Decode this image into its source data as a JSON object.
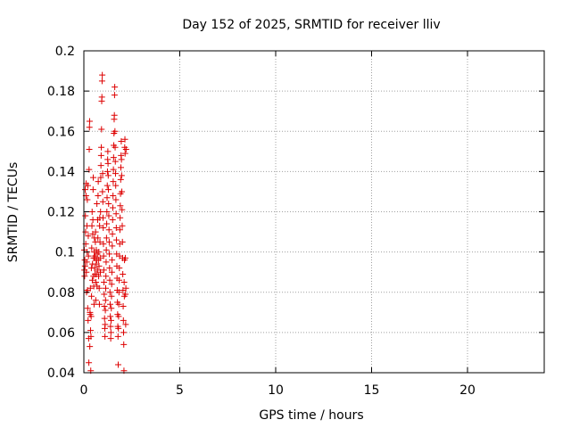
{
  "chart_data": {
    "type": "scatter",
    "title": "Day 152 of 2025, SRMTID for receiver lliv",
    "xlabel": "GPS time / hours",
    "ylabel": "SRMTID / TECUs",
    "xlim": [
      0,
      24
    ],
    "ylim": [
      0.04,
      0.2
    ],
    "x_ticks": [
      0,
      5,
      10,
      15,
      20
    ],
    "x_tick_labels": [
      "0",
      "5",
      "10",
      "15",
      "20"
    ],
    "y_ticks": [
      0.04,
      0.06,
      0.08,
      0.1,
      0.12,
      0.14,
      0.16,
      0.18,
      0.2
    ],
    "y_tick_labels": [
      "0.04",
      "0.06",
      "0.08",
      "0.1",
      "0.12",
      "0.14",
      "0.16",
      "0.18",
      "0.2"
    ],
    "grid": true,
    "marker": "plus",
    "color": "#dd0000",
    "series": [
      {
        "points": [
          [
            0.02,
            0.101
          ],
          [
            0.03,
            0.091
          ],
          [
            0.04,
            0.088
          ],
          [
            0.05,
            0.096
          ],
          [
            0.06,
            0.093
          ],
          [
            0.07,
            0.131
          ],
          [
            0.08,
            0.118
          ],
          [
            0.09,
            0.11
          ],
          [
            0.1,
            0.104
          ],
          [
            0.11,
            0.128
          ],
          [
            0.12,
            0.134
          ],
          [
            0.13,
            0.09
          ],
          [
            0.14,
            0.08
          ],
          [
            0.15,
            0.095
          ],
          [
            0.16,
            0.113
          ],
          [
            0.17,
            0.1
          ],
          [
            0.18,
            0.126
          ],
          [
            0.19,
            0.081
          ],
          [
            0.2,
            0.072
          ],
          [
            0.21,
            0.133
          ],
          [
            0.22,
            0.066
          ],
          [
            0.23,
            0.108
          ],
          [
            0.24,
            0.098
          ],
          [
            0.25,
            0.057
          ],
          [
            0.26,
            0.045
          ],
          [
            0.27,
            0.141
          ],
          [
            0.28,
            0.151
          ],
          [
            0.29,
            0.162
          ],
          [
            0.3,
            0.165
          ],
          [
            0.31,
            0.053
          ],
          [
            0.32,
            0.07
          ],
          [
            0.33,
            0.069
          ],
          [
            0.34,
            0.082
          ],
          [
            0.35,
            0.061
          ],
          [
            0.36,
            0.041
          ],
          [
            0.37,
            0.058
          ],
          [
            0.38,
            0.068
          ],
          [
            0.39,
            0.092
          ],
          [
            0.4,
            0.078
          ],
          [
            0.41,
            0.102
          ],
          [
            0.42,
            0.113
          ],
          [
            0.43,
            0.12
          ],
          [
            0.44,
            0.086
          ],
          [
            0.45,
            0.094
          ],
          [
            0.46,
            0.109
          ],
          [
            0.47,
            0.116
          ],
          [
            0.48,
            0.131
          ],
          [
            0.49,
            0.137
          ],
          [
            0.5,
            0.088
          ],
          [
            0.51,
            0.097
          ],
          [
            0.52,
            0.083
          ],
          [
            0.53,
            0.074
          ],
          [
            0.54,
            0.1
          ],
          [
            0.55,
            0.107
          ],
          [
            0.56,
            0.092
          ],
          [
            0.57,
            0.097
          ],
          [
            0.58,
            0.089
          ],
          [
            0.59,
            0.098
          ],
          [
            0.6,
            0.105
          ],
          [
            0.61,
            0.11
          ],
          [
            0.62,
            0.076
          ],
          [
            0.63,
            0.085
          ],
          [
            0.64,
            0.094
          ],
          [
            0.65,
            0.101
          ],
          [
            0.66,
            0.089
          ],
          [
            0.67,
            0.096
          ],
          [
            0.68,
            0.124
          ],
          [
            0.69,
            0.083
          ],
          [
            0.7,
            0.099
          ],
          [
            0.71,
            0.091
          ],
          [
            0.72,
            0.116
          ],
          [
            0.73,
            0.107
          ],
          [
            0.74,
            0.128
          ],
          [
            0.75,
            0.135
          ],
          [
            0.76,
            0.096
          ],
          [
            0.77,
            0.088
          ],
          [
            0.78,
            0.1
          ],
          [
            0.79,
            0.093
          ],
          [
            0.8,
            0.082
          ],
          [
            0.81,
            0.074
          ],
          [
            0.82,
            0.113
          ],
          [
            0.83,
            0.117
          ],
          [
            0.84,
            0.105
          ],
          [
            0.85,
            0.097
          ],
          [
            0.86,
            0.09
          ],
          [
            0.87,
            0.12
          ],
          [
            0.88,
            0.137
          ],
          [
            0.89,
            0.143
          ],
          [
            0.9,
            0.148
          ],
          [
            0.91,
            0.152
          ],
          [
            0.92,
            0.161
          ],
          [
            0.93,
            0.175
          ],
          [
            0.94,
            0.177
          ],
          [
            0.95,
            0.185
          ],
          [
            0.96,
            0.188
          ],
          [
            0.97,
            0.13
          ],
          [
            0.98,
            0.139
          ],
          [
            0.99,
            0.125
          ],
          [
            1.0,
            0.117
          ],
          [
            1.01,
            0.112
          ],
          [
            1.02,
            0.104
          ],
          [
            1.03,
            0.098
          ],
          [
            1.04,
            0.091
          ],
          [
            1.05,
            0.085
          ],
          [
            1.06,
            0.079
          ],
          [
            1.07,
            0.073
          ],
          [
            1.08,
            0.067
          ],
          [
            1.09,
            0.062
          ],
          [
            1.1,
            0.058
          ],
          [
            1.11,
            0.064
          ],
          [
            1.12,
            0.071
          ],
          [
            1.13,
            0.076
          ],
          [
            1.14,
            0.082
          ],
          [
            1.15,
            0.088
          ],
          [
            1.16,
            0.095
          ],
          [
            1.17,
            0.101
          ],
          [
            1.18,
            0.107
          ],
          [
            1.19,
            0.114
          ],
          [
            1.2,
            0.12
          ],
          [
            1.21,
            0.127
          ],
          [
            1.22,
            0.133
          ],
          [
            1.23,
            0.14
          ],
          [
            1.24,
            0.146
          ],
          [
            1.25,
            0.15
          ],
          [
            1.26,
            0.144
          ],
          [
            1.27,
            0.138
          ],
          [
            1.28,
            0.131
          ],
          [
            1.29,
            0.124
          ],
          [
            1.3,
            0.118
          ],
          [
            1.31,
            0.111
          ],
          [
            1.32,
            0.105
          ],
          [
            1.33,
            0.099
          ],
          [
            1.34,
            0.092
          ],
          [
            1.35,
            0.086
          ],
          [
            1.36,
            0.08
          ],
          [
            1.37,
            0.074
          ],
          [
            1.38,
            0.068
          ],
          [
            1.39,
            0.063
          ],
          [
            1.4,
            0.057
          ],
          [
            1.41,
            0.06
          ],
          [
            1.42,
            0.066
          ],
          [
            1.43,
            0.072
          ],
          [
            1.44,
            0.078
          ],
          [
            1.45,
            0.084
          ],
          [
            1.46,
            0.09
          ],
          [
            1.47,
            0.096
          ],
          [
            1.48,
            0.103
          ],
          [
            1.49,
            0.109
          ],
          [
            1.5,
            0.116
          ],
          [
            1.51,
            0.122
          ],
          [
            1.52,
            0.128
          ],
          [
            1.53,
            0.135
          ],
          [
            1.54,
            0.141
          ],
          [
            1.55,
            0.147
          ],
          [
            1.56,
            0.153
          ],
          [
            1.57,
            0.159
          ],
          [
            1.58,
            0.166
          ],
          [
            1.59,
            0.168
          ],
          [
            1.6,
            0.178
          ],
          [
            1.61,
            0.182
          ],
          [
            1.62,
            0.16
          ],
          [
            1.63,
            0.152
          ],
          [
            1.64,
            0.145
          ],
          [
            1.65,
            0.139
          ],
          [
            1.66,
            0.133
          ],
          [
            1.67,
            0.126
          ],
          [
            1.68,
            0.119
          ],
          [
            1.69,
            0.112
          ],
          [
            1.7,
            0.106
          ],
          [
            1.71,
            0.099
          ],
          [
            1.72,
            0.093
          ],
          [
            1.73,
            0.087
          ],
          [
            1.74,
            0.081
          ],
          [
            1.75,
            0.075
          ],
          [
            1.76,
            0.069
          ],
          [
            1.77,
            0.063
          ],
          [
            1.78,
            0.058
          ],
          [
            1.79,
            0.044
          ],
          [
            1.8,
            0.062
          ],
          [
            1.81,
            0.068
          ],
          [
            1.82,
            0.074
          ],
          [
            1.83,
            0.08
          ],
          [
            1.84,
            0.086
          ],
          [
            1.85,
            0.092
          ],
          [
            1.86,
            0.098
          ],
          [
            1.87,
            0.104
          ],
          [
            1.88,
            0.111
          ],
          [
            1.89,
            0.117
          ],
          [
            1.9,
            0.123
          ],
          [
            1.91,
            0.129
          ],
          [
            1.92,
            0.136
          ],
          [
            1.93,
            0.142
          ],
          [
            1.94,
            0.148
          ],
          [
            1.95,
            0.155
          ],
          [
            1.96,
            0.146
          ],
          [
            1.97,
            0.138
          ],
          [
            1.98,
            0.13
          ],
          [
            1.99,
            0.121
          ],
          [
            2.0,
            0.113
          ],
          [
            2.01,
            0.105
          ],
          [
            2.02,
            0.097
          ],
          [
            2.03,
            0.089
          ],
          [
            2.04,
            0.081
          ],
          [
            2.05,
            0.073
          ],
          [
            2.06,
            0.066
          ],
          [
            2.07,
            0.06
          ],
          [
            2.08,
            0.054
          ],
          [
            2.09,
            0.041
          ],
          [
            2.1,
            0.085
          ],
          [
            2.11,
            0.078
          ],
          [
            2.12,
            0.096
          ],
          [
            2.13,
            0.152
          ],
          [
            2.14,
            0.156
          ],
          [
            2.15,
            0.149
          ],
          [
            2.16,
            0.097
          ],
          [
            2.17,
            0.079
          ],
          [
            2.18,
            0.064
          ],
          [
            2.19,
            0.082
          ],
          [
            2.2,
            0.151
          ]
        ]
      }
    ]
  }
}
